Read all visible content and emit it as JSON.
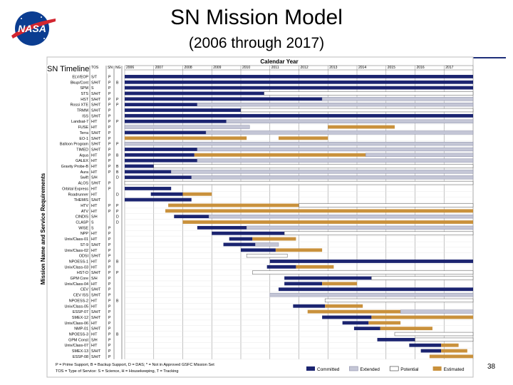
{
  "header": {
    "title": "SN Mission Model",
    "subtitle": "(2006 through 2017)",
    "logo_text": "NASA"
  },
  "page_number": "38",
  "colors": {
    "committed": "#1b2470",
    "extended": "#c4c6d6",
    "potential": "#ffffff",
    "estimated": "#c9913c",
    "rule": "#1f2f7a"
  },
  "chart_data": {
    "type": "gantt",
    "title": "Calendar Year",
    "ylabel": "Mission Name and Service Requirements",
    "overlay_label": "SN Timeline",
    "col_headers": [
      "TOS",
      "SN",
      "NG"
    ],
    "years": [
      "2006",
      "2007",
      "2008",
      "2009",
      "2010",
      "2011",
      "2012",
      "2013",
      "2014",
      "2015",
      "2016",
      "2017"
    ],
    "xlim": [
      2006,
      2018
    ],
    "rows": [
      {
        "name": "ELV/EOP",
        "tos": "S/T",
        "f1": "P",
        "f2": "",
        "segs": [
          [
            2006,
            2018,
            "committed"
          ]
        ]
      },
      {
        "name": "Bkup/Cont",
        "tos": "S/H/T",
        "f1": "P",
        "f2": "B",
        "segs": [
          [
            2006,
            2018,
            "committed"
          ]
        ]
      },
      {
        "name": "SPM",
        "tos": "S",
        "f1": "P",
        "f2": "",
        "segs": [
          [
            2006,
            2018,
            "committed"
          ]
        ]
      },
      {
        "name": "STS",
        "tos": "S/H/T",
        "f1": "P",
        "f2": "",
        "segs": [
          [
            2006,
            2010.8,
            "committed"
          ],
          [
            2010.8,
            2018,
            "potential"
          ]
        ]
      },
      {
        "name": "HST",
        "tos": "S/H/T",
        "f1": "P",
        "f2": "P",
        "segs": [
          [
            2006,
            2012.8,
            "committed"
          ],
          [
            2012.8,
            2018,
            "extended"
          ]
        ]
      },
      {
        "name": "Rossi XTE",
        "tos": "S/H/T",
        "f1": "P",
        "f2": "P",
        "segs": [
          [
            2006,
            2008.5,
            "committed"
          ],
          [
            2008.5,
            2018,
            "extended"
          ]
        ]
      },
      {
        "name": "TRMM",
        "tos": "S/H/T",
        "f1": "P",
        "f2": "",
        "segs": [
          [
            2006,
            2010,
            "committed"
          ],
          [
            2010,
            2018,
            "potential"
          ]
        ]
      },
      {
        "name": "ISS",
        "tos": "S/H/T",
        "f1": "P",
        "f2": "",
        "segs": [
          [
            2006,
            2018,
            "committed"
          ]
        ]
      },
      {
        "name": "Landsat-7",
        "tos": "H/T",
        "f1": "P",
        "f2": "P",
        "segs": [
          [
            2006,
            2009.5,
            "committed"
          ],
          [
            2009.5,
            2018,
            "extended"
          ]
        ]
      },
      {
        "name": "FUSE",
        "tos": "H/T",
        "f1": "P",
        "f2": "",
        "segs": [
          [
            2006,
            2010.3,
            "extended"
          ],
          [
            2013,
            2015.3,
            "estimated"
          ]
        ]
      },
      {
        "name": "Terra",
        "tos": "S/H/T",
        "f1": "P",
        "f2": "",
        "segs": [
          [
            2006,
            2008.8,
            "committed"
          ],
          [
            2008.8,
            2018,
            "extended"
          ]
        ]
      },
      {
        "name": "EO-1",
        "tos": "S/H/T",
        "f1": "P",
        "f2": "",
        "segs": [
          [
            2006,
            2010.2,
            "estimated"
          ],
          [
            2011.3,
            2013,
            "estimated"
          ]
        ]
      },
      {
        "name": "Balloon Program",
        "tos": "S/H/T",
        "f1": "P",
        "f2": "P",
        "segs": [
          [
            2006,
            2018,
            "extended"
          ]
        ]
      },
      {
        "name": "TIMED",
        "tos": "S/H/T",
        "f1": "P",
        "f2": "",
        "segs": [
          [
            2006,
            2008.5,
            "committed"
          ],
          [
            2008.5,
            2018,
            "extended"
          ]
        ]
      },
      {
        "name": "Aqua",
        "tos": "H/T",
        "f1": "P",
        "f2": "B",
        "segs": [
          [
            2006,
            2008.4,
            "committed"
          ],
          [
            2008.4,
            2014.3,
            "estimated"
          ],
          [
            2014.3,
            2018,
            "extended"
          ]
        ]
      },
      {
        "name": "GALEX",
        "tos": "H/T",
        "f1": "P",
        "f2": "",
        "segs": [
          [
            2006,
            2008.5,
            "committed"
          ],
          [
            2008.5,
            2018,
            "extended"
          ]
        ]
      },
      {
        "name": "Gravity Probe-B",
        "tos": "H/T",
        "f1": "P",
        "f2": "B",
        "segs": [
          [
            2006,
            2007,
            "committed"
          ],
          [
            2007,
            2018,
            "potential"
          ]
        ]
      },
      {
        "name": "Aura",
        "tos": "H/T",
        "f1": "P",
        "f2": "B",
        "segs": [
          [
            2006,
            2007.6,
            "committed"
          ],
          [
            2007.6,
            2018,
            "extended"
          ]
        ]
      },
      {
        "name": "Swift",
        "tos": "S/H",
        "f1": "",
        "f2": "D",
        "segs": [
          [
            2006,
            2008.3,
            "committed"
          ],
          [
            2008.3,
            2018,
            "extended"
          ]
        ]
      },
      {
        "name": "ALOS",
        "tos": "S/H/T",
        "f1": "P",
        "f2": "",
        "segs": [
          [
            2006,
            2018,
            "potential"
          ]
        ]
      },
      {
        "name": "Orbital Express",
        "tos": "H/T",
        "f1": "P",
        "f2": "",
        "segs": [
          [
            2006,
            2007.6,
            "committed"
          ]
        ]
      },
      {
        "name": "Roadrunner",
        "tos": "H/T",
        "f1": "",
        "f2": "D",
        "segs": [
          [
            2006.9,
            2008,
            "committed"
          ],
          [
            2008,
            2009,
            "estimated"
          ]
        ]
      },
      {
        "name": "THEMIS",
        "tos": "S/H/T",
        "f1": "",
        "f2": "",
        "segs": [
          [
            2006,
            2008.3,
            "committed"
          ]
        ]
      },
      {
        "name": "HTV",
        "tos": "H/T",
        "f1": "P",
        "f2": "P",
        "segs": [
          [
            2007.5,
            2012,
            "estimated"
          ],
          [
            2012,
            2018,
            "potential"
          ]
        ]
      },
      {
        "name": "ATV",
        "tos": "H/T",
        "f1": "P",
        "f2": "P",
        "segs": [
          [
            2007.4,
            2018,
            "estimated"
          ]
        ]
      },
      {
        "name": "CINDIS",
        "tos": "S/H",
        "f1": "",
        "f2": "D",
        "segs": [
          [
            2007.7,
            2008.9,
            "committed"
          ],
          [
            2008.9,
            2018,
            "extended"
          ]
        ]
      },
      {
        "name": "CLASP",
        "tos": "S",
        "f1": "",
        "f2": "D",
        "segs": [
          [
            2008,
            2018,
            "estimated"
          ]
        ]
      },
      {
        "name": "WISE",
        "tos": "S",
        "f1": "P",
        "f2": "",
        "segs": [
          [
            2008.5,
            2010.2,
            "committed"
          ],
          [
            2010.2,
            2018,
            "extended"
          ]
        ]
      },
      {
        "name": "NPP",
        "tos": "H/T",
        "f1": "P",
        "f2": "",
        "segs": [
          [
            2009,
            2011.5,
            "committed"
          ],
          [
            2011.5,
            2018,
            "potential"
          ]
        ]
      },
      {
        "name": "Univ/Class-01",
        "tos": "H/T",
        "f1": "P",
        "f2": "",
        "segs": [
          [
            2009.6,
            2010.4,
            "committed"
          ],
          [
            2010.4,
            2011.9,
            "estimated"
          ]
        ]
      },
      {
        "name": "ST-9",
        "tos": "S/H/T",
        "f1": "P",
        "f2": "",
        "segs": [
          [
            2009.4,
            2010.5,
            "committed"
          ],
          [
            2010.5,
            2011.3,
            "extended"
          ]
        ]
      },
      {
        "name": "Univ/Class-02",
        "tos": "H/T",
        "f1": "P",
        "f2": "",
        "segs": [
          [
            2010,
            2011.2,
            "committed"
          ],
          [
            2011.2,
            2012.8,
            "estimated"
          ]
        ]
      },
      {
        "name": "ODSI",
        "tos": "S/H/T",
        "f1": "P",
        "f2": "",
        "segs": [
          [
            2010.2,
            2011.6,
            "potential"
          ]
        ]
      },
      {
        "name": "NPOESS-1",
        "tos": "H/T",
        "f1": "P",
        "f2": "B",
        "segs": [
          [
            2011,
            2018,
            "committed"
          ]
        ]
      },
      {
        "name": "Univ/Class-03",
        "tos": "H/T",
        "f1": "P",
        "f2": "",
        "segs": [
          [
            2010.9,
            2011.9,
            "committed"
          ],
          [
            2011.9,
            2013.2,
            "estimated"
          ]
        ]
      },
      {
        "name": "HST-D",
        "tos": "S/H/T",
        "f1": "P",
        "f2": "P",
        "segs": [
          [
            2010.4,
            2018,
            "potential"
          ]
        ]
      },
      {
        "name": "GPM Core",
        "tos": "S/H",
        "f1": "P",
        "f2": "",
        "segs": [
          [
            2011.5,
            2014.5,
            "committed"
          ],
          [
            2014.5,
            2018,
            "potential"
          ]
        ]
      },
      {
        "name": "Univ/Class-04",
        "tos": "H/T",
        "f1": "P",
        "f2": "",
        "segs": [
          [
            2011.5,
            2012.8,
            "committed"
          ],
          [
            2012.8,
            2014,
            "estimated"
          ]
        ]
      },
      {
        "name": "CEV",
        "tos": "S/H/T",
        "f1": "P",
        "f2": "",
        "segs": [
          [
            2011.3,
            2018,
            "committed"
          ]
        ]
      },
      {
        "name": "CEV ISS",
        "tos": "S/H/T",
        "f1": "P",
        "f2": "",
        "segs": [
          [
            2011,
            2018,
            "extended"
          ]
        ]
      },
      {
        "name": "NPOESS-2",
        "tos": "H/T",
        "f1": "P",
        "f2": "B",
        "segs": [
          [
            2012.9,
            2018,
            "potential"
          ]
        ]
      },
      {
        "name": "Univ/Class-05",
        "tos": "H/T",
        "f1": "P",
        "f2": "",
        "segs": [
          [
            2011.8,
            2012.9,
            "committed"
          ],
          [
            2012.9,
            2014.2,
            "estimated"
          ]
        ]
      },
      {
        "name": "ESSP-07",
        "tos": "S/H/T",
        "f1": "P",
        "f2": "",
        "segs": [
          [
            2012.3,
            2015.5,
            "estimated"
          ],
          [
            2015.5,
            2018,
            "extended"
          ]
        ]
      },
      {
        "name": "SMEX-12",
        "tos": "S/H/T",
        "f1": "P",
        "f2": "",
        "segs": [
          [
            2012.8,
            2014.5,
            "committed"
          ],
          [
            2014.5,
            2018,
            "estimated"
          ]
        ]
      },
      {
        "name": "Univ/Class-06",
        "tos": "H/T",
        "f1": "P",
        "f2": "",
        "segs": [
          [
            2013.5,
            2014.4,
            "committed"
          ],
          [
            2014.4,
            2015.5,
            "estimated"
          ]
        ]
      },
      {
        "name": "NMP-01",
        "tos": "S/H/T",
        "f1": "P",
        "f2": "",
        "segs": [
          [
            2013.9,
            2014.8,
            "committed"
          ],
          [
            2014.8,
            2016.6,
            "estimated"
          ]
        ]
      },
      {
        "name": "NPOESS-3",
        "tos": "H/T",
        "f1": "P",
        "f2": "B",
        "segs": [
          [
            2015.3,
            2018,
            "potential"
          ]
        ]
      },
      {
        "name": "GPM Const",
        "tos": "S/H",
        "f1": "P",
        "f2": "",
        "segs": [
          [
            2014.7,
            2016,
            "committed"
          ],
          [
            2016,
            2018,
            "potential"
          ]
        ]
      },
      {
        "name": "Univ/Class-07",
        "tos": "H/T",
        "f1": "P",
        "f2": "",
        "segs": [
          [
            2015.8,
            2016.9,
            "committed"
          ],
          [
            2016.9,
            2017.5,
            "estimated"
          ]
        ]
      },
      {
        "name": "SMEX-13",
        "tos": "S/H/T",
        "f1": "P",
        "f2": "",
        "segs": [
          [
            2016.2,
            2016.9,
            "committed"
          ],
          [
            2016.9,
            2017.8,
            "estimated"
          ]
        ]
      },
      {
        "name": "ESSP-08",
        "tos": "S/H/T",
        "f1": "P",
        "f2": "",
        "segs": [
          [
            2016.5,
            2018,
            "estimated"
          ]
        ]
      }
    ],
    "footnotes": [
      "P = Prime Support, B = Backup Support, D = DAS; * = Not in Approved GSFC Mission Set",
      "TOS = Type of Service: S = Science, H = Housekeeping, T = Tracking"
    ],
    "legend": [
      {
        "label": "Committed",
        "status": "committed"
      },
      {
        "label": "Extended",
        "status": "extended"
      },
      {
        "label": "Potential",
        "status": "potential"
      },
      {
        "label": "Estimated",
        "status": "estimated"
      }
    ]
  }
}
